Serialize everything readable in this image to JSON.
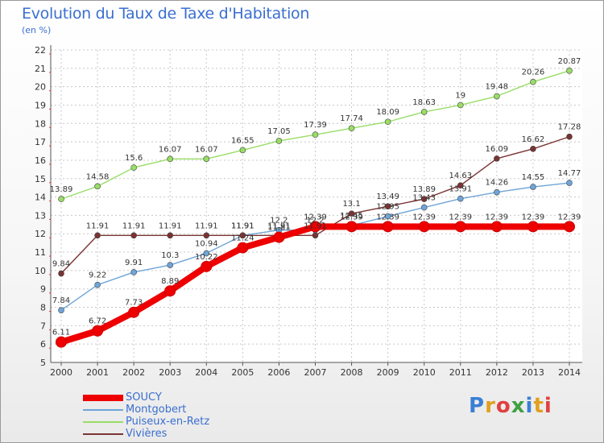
{
  "header": {
    "title": "Evolution du Taux de Taxe d'Habitation",
    "unit": "(en %)"
  },
  "logo": {
    "text": "Proxiti"
  },
  "chart_data": {
    "type": "line",
    "title": "Evolution du Taux de Taxe d'Habitation",
    "ylabel": "(en %)",
    "xlabel": "",
    "x": [
      "2000",
      "2001",
      "2002",
      "2003",
      "2004",
      "2005",
      "2006",
      "2007",
      "2008",
      "2009",
      "2010",
      "2011",
      "2012",
      "2013",
      "2014"
    ],
    "ylim": [
      5,
      22
    ],
    "yticks": [
      5,
      6,
      7,
      8,
      9,
      10,
      11,
      12,
      13,
      14,
      15,
      16,
      17,
      18,
      19,
      20,
      21,
      22
    ],
    "grid": true,
    "legend_position": "bottom-left",
    "series": [
      {
        "name": "SOUCY",
        "color": "#ee0000",
        "values": [
          6.11,
          6.72,
          7.73,
          8.89,
          10.22,
          11.24,
          11.81,
          12.39,
          12.39,
          12.39,
          12.39,
          12.39,
          12.39,
          12.39,
          12.39
        ],
        "labels": [
          "6.11",
          "6.72",
          "7.73",
          "8.89",
          "10.22",
          "11.24",
          "11.81",
          "12.39",
          "12.39",
          "12.39",
          "12.39",
          "12.39",
          "12.39",
          "12.39",
          "12.39"
        ]
      },
      {
        "name": "Montgobert",
        "color": "#6fa5d8",
        "values": [
          7.84,
          9.22,
          9.91,
          10.3,
          10.94,
          11.91,
          12.2,
          12.2,
          12.45,
          12.95,
          13.43,
          13.91,
          14.26,
          14.55,
          14.77
        ],
        "labels": [
          "7.84",
          "9.22",
          "9.91",
          "10.3",
          "10.94",
          "11.91",
          "12.2",
          "12.2",
          "12.45",
          "12.95",
          "13.43",
          "13.91",
          "14.26",
          "14.55",
          "14.77"
        ]
      },
      {
        "name": "Puiseux-en-Retz",
        "color": "#99dd66",
        "values": [
          13.89,
          14.58,
          15.6,
          16.07,
          16.07,
          16.55,
          17.05,
          17.39,
          17.74,
          18.09,
          18.63,
          19.0,
          19.48,
          20.26,
          20.87
        ],
        "labels": [
          "13.89",
          "14.58",
          "15.6",
          "16.07",
          "16.07",
          "16.55",
          "17.05",
          "17.39",
          "17.74",
          "18.09",
          "18.63",
          "19",
          "19.48",
          "20.26",
          "20.87"
        ]
      },
      {
        "name": "Vivières",
        "color": "#7a3333",
        "values": [
          9.84,
          11.91,
          11.91,
          11.91,
          11.91,
          11.91,
          11.91,
          11.91,
          13.1,
          13.49,
          13.89,
          14.63,
          16.09,
          16.62,
          17.28
        ],
        "labels": [
          "9.84",
          "11.91",
          "11.91",
          "11.91",
          "11.91",
          "11.91",
          "11.91",
          "11.91",
          "13.1",
          "13.49",
          "13.89",
          "14.63",
          "16.09",
          "16.62",
          "17.28"
        ]
      }
    ]
  }
}
